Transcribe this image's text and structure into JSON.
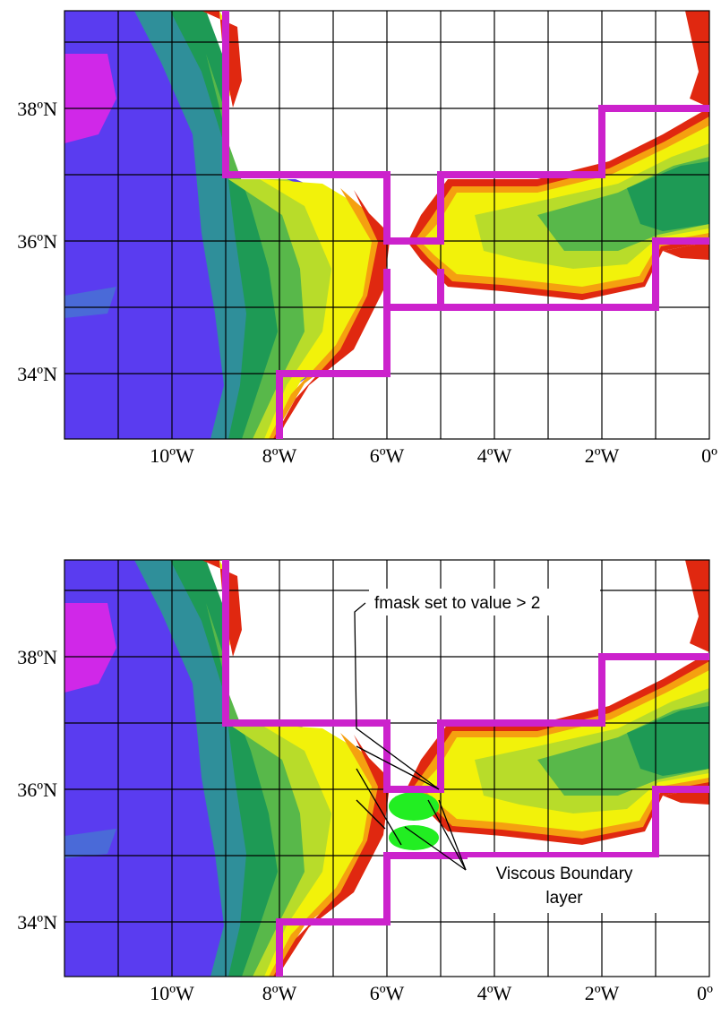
{
  "colors": {
    "land": "#ffffff",
    "deep_ocean": "#5a3cf0",
    "deepest": "#d028e8",
    "slope_blue": "#4a6ad8",
    "teal": "#2f8f9a",
    "green_dark": "#1e9a55",
    "green": "#58b84a",
    "yellow_green": "#b8dc2a",
    "yellow": "#f2f20a",
    "orange": "#f5a010",
    "red": "#e02810",
    "mask_line": "#cc22cc",
    "boundary_layer": "#22ee22",
    "grid": "#000000"
  },
  "axes": {
    "x_ticks": [
      {
        "lon": -10,
        "label": "10ºW"
      },
      {
        "lon": -8,
        "label": "8ºW"
      },
      {
        "lon": -6,
        "label": "6ºW"
      },
      {
        "lon": -4,
        "label": "4ºW"
      },
      {
        "lon": -2,
        "label": "2ºW"
      },
      {
        "lon": 0,
        "label": "0º"
      }
    ],
    "y_ticks": [
      {
        "lat": 38,
        "label": "38ºN"
      },
      {
        "lat": 36,
        "label": "36ºN"
      },
      {
        "lat": 34,
        "label": "34ºN"
      }
    ],
    "lon_range": [
      -12,
      0
    ],
    "lat_range": [
      33,
      39.5
    ]
  },
  "panels": [
    {
      "name": "top",
      "annotations": []
    },
    {
      "name": "bottom",
      "annotations": {
        "fmask": "fmask set to value > 2",
        "viscous_line1": "Viscous Boundary",
        "viscous_line2": "layer"
      }
    }
  ]
}
